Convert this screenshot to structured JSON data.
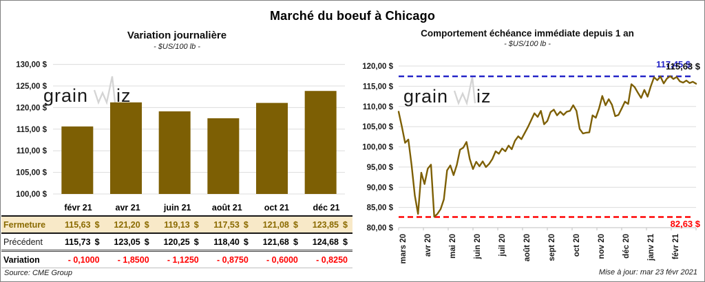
{
  "page": {
    "title": "Marché du boeuf à Chicago",
    "source": "Source: CME Group",
    "updated": "Mise à jour: mar 23 févr 2021",
    "watermark": "grainwiz"
  },
  "colors": {
    "gold": "#7D5F04",
    "beige": "#F8E9C8",
    "red": "#FF0000",
    "blue": "#2424C8",
    "grid": "#DCDCDC",
    "tick": "#BFBFBF",
    "watermark": "#D4D4D4"
  },
  "table": {
    "columns": [
      "févr 21",
      "avr 21",
      "juin 21",
      "août 21",
      "oct 21",
      "déc 21"
    ],
    "rows": [
      {
        "label": "Fermeture",
        "style": "fermeture",
        "cells": [
          "115,63 $",
          "121,20 $",
          "119,13 $",
          "117,53 $",
          "121,08 $",
          "123,85 $"
        ]
      },
      {
        "label": "Précédent",
        "style": "precedent",
        "cells": [
          "115,73 $",
          "123,05 $",
          "120,25 $",
          "118,40 $",
          "121,68 $",
          "124,68 $"
        ]
      },
      {
        "label": "Variation",
        "style": "variation",
        "cells": [
          "- 0,1000",
          "- 1,8500",
          "- 1,1250",
          "- 0,8750",
          "- 0,6000",
          "- 0,8250"
        ]
      }
    ]
  },
  "chart_data": [
    {
      "type": "bar",
      "title": "Variation  journalière",
      "subtitle": "- $US/100 lb -",
      "categories": [
        "févr 21",
        "avr 21",
        "juin 21",
        "août 21",
        "oct 21",
        "déc 21"
      ],
      "values": [
        115.63,
        121.2,
        119.13,
        117.53,
        121.08,
        123.85
      ],
      "ylim": [
        100,
        130
      ],
      "ytick_step": 5,
      "yticks": [
        "100,00 $",
        "105,00 $",
        "110,00 $",
        "115,00 $",
        "120,00 $",
        "125,00 $",
        "130,00 $"
      ],
      "grid": true,
      "legend": "none"
    },
    {
      "type": "line",
      "title": "Comportement  échéance immédiate depuis 1 an",
      "subtitle": "- $US/100 lb -",
      "x_categories": [
        "mars 20",
        "avr 20",
        "mai 20",
        "juin 20",
        "juil 20",
        "août 20",
        "sept 20",
        "oct 20",
        "nov 20",
        "déc 20",
        "janv 21",
        "févr 21"
      ],
      "values": [
        108.7,
        105.0,
        101.0,
        101.8,
        95.5,
        88.0,
        83.4,
        93.6,
        90.8,
        94.6,
        95.6,
        82.7,
        83.4,
        84.6,
        87.0,
        94.2,
        95.4,
        93.0,
        95.5,
        99.3,
        99.8,
        101.2,
        97.0,
        94.5,
        96.3,
        95.2,
        96.4,
        95.0,
        95.8,
        97.0,
        98.9,
        98.3,
        99.6,
        98.9,
        100.3,
        99.4,
        101.5,
        102.6,
        101.9,
        103.4,
        104.9,
        106.6,
        108.3,
        107.4,
        108.9,
        105.6,
        106.4,
        108.6,
        109.2,
        107.8,
        108.7,
        107.9,
        108.7,
        108.9,
        110.3,
        108.9,
        104.4,
        103.3,
        103.5,
        103.6,
        107.8,
        107.2,
        109.5,
        112.6,
        110.3,
        111.8,
        110.4,
        107.6,
        107.9,
        109.5,
        111.2,
        110.6,
        115.5,
        114.8,
        113.4,
        112.1,
        114.1,
        112.4,
        115.0,
        117.2,
        116.5,
        117.4,
        115.7,
        116.9,
        117.5,
        116.8,
        117.3,
        116.2,
        115.9,
        116.4,
        115.8,
        116.1,
        115.63
      ],
      "ylim": [
        80,
        120
      ],
      "ytick_step": 5,
      "yticks": [
        "80,00 $",
        "85,00 $",
        "90,00 $",
        "95,00 $",
        "100,00 $",
        "105,00 $",
        "110,00 $",
        "115,00 $",
        "120,00 $"
      ],
      "grid": true,
      "annotations": {
        "max_value": 117.45,
        "max_label": "117,45 $",
        "min_value": 82.63,
        "min_label": "82,63 $",
        "last_label": "115,63 $"
      }
    }
  ]
}
